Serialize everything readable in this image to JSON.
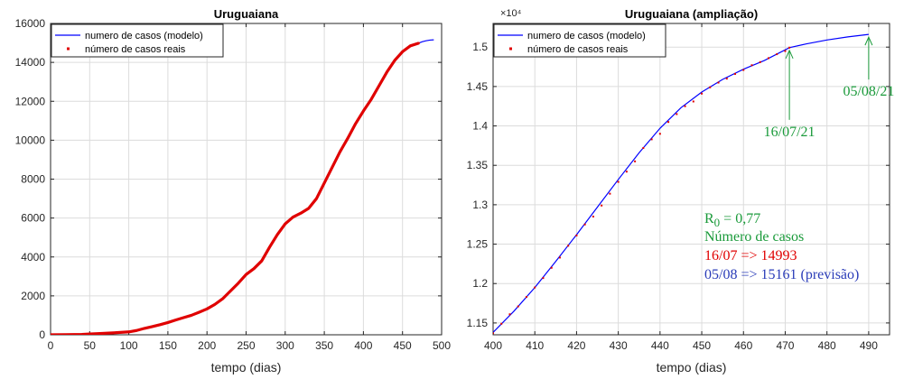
{
  "chart_data": [
    {
      "type": "line",
      "title": "Uruguaiana",
      "xlabel": "tempo (dias)",
      "ylabel": "",
      "xlim": [
        0,
        500
      ],
      "ylim": [
        0,
        16000
      ],
      "xticks": [
        0,
        50,
        100,
        150,
        200,
        250,
        300,
        350,
        400,
        450,
        500
      ],
      "yticks": [
        0,
        2000,
        4000,
        6000,
        8000,
        10000,
        12000,
        14000,
        16000
      ],
      "grid": true,
      "legend_position": "top-left",
      "series": [
        {
          "name": "numero de casos (modelo)",
          "color": "#0000ff",
          "style": "line",
          "x": [
            471,
            475,
            480,
            485,
            490
          ],
          "y": [
            14993,
            15060,
            15110,
            15145,
            15161
          ]
        },
        {
          "name": "número de casos reais",
          "color": "#e00000",
          "style": "markers",
          "x": [
            0,
            20,
            40,
            50,
            60,
            80,
            100,
            110,
            120,
            130,
            140,
            150,
            160,
            170,
            180,
            190,
            200,
            210,
            220,
            230,
            240,
            250,
            260,
            270,
            280,
            290,
            300,
            310,
            320,
            330,
            340,
            350,
            360,
            370,
            380,
            390,
            400,
            410,
            420,
            430,
            440,
            450,
            460,
            471
          ],
          "y": [
            0,
            5,
            20,
            40,
            60,
            100,
            150,
            220,
            330,
            420,
            520,
            630,
            760,
            880,
            1000,
            1160,
            1330,
            1560,
            1850,
            2250,
            2650,
            3100,
            3400,
            3800,
            4500,
            5150,
            5700,
            6050,
            6250,
            6500,
            7000,
            7800,
            8600,
            9400,
            10100,
            10850,
            11500,
            12100,
            12800,
            13500,
            14100,
            14550,
            14850,
            14993
          ]
        }
      ]
    },
    {
      "type": "line",
      "title": "Uruguaiana (ampliação)",
      "xlabel": "tempo (dias)",
      "ylabel": "",
      "y_exponent_label": "×10⁴",
      "xlim": [
        400,
        495
      ],
      "ylim": [
        1.135,
        1.53
      ],
      "xticks": [
        400,
        410,
        420,
        430,
        440,
        450,
        460,
        470,
        480,
        490
      ],
      "yticks": [
        1.15,
        1.2,
        1.25,
        1.3,
        1.35,
        1.4,
        1.45,
        1.5
      ],
      "ytick_labels": [
        "1.15",
        "1.2",
        "1.25",
        "1.3",
        "1.35",
        "1.4",
        "1.45",
        "1.5"
      ],
      "grid": true,
      "legend_position": "top-left",
      "series": [
        {
          "name": "numero de casos (modelo)",
          "color": "#0000ff",
          "style": "line",
          "x": [
            400,
            405,
            410,
            415,
            420,
            425,
            430,
            435,
            440,
            445,
            450,
            455,
            460,
            465,
            471,
            475,
            480,
            485,
            490
          ],
          "y": [
            1.138,
            1.165,
            1.195,
            1.228,
            1.262,
            1.297,
            1.332,
            1.366,
            1.397,
            1.423,
            1.443,
            1.459,
            1.472,
            1.483,
            1.4993,
            1.504,
            1.509,
            1.513,
            1.5161
          ]
        },
        {
          "name": "número de casos reais",
          "color": "#e00000",
          "style": "markers",
          "x": [
            400,
            402,
            404,
            406,
            408,
            410,
            412,
            414,
            416,
            418,
            420,
            422,
            424,
            426,
            428,
            430,
            432,
            434,
            436,
            438,
            440,
            442,
            444,
            446,
            448,
            450,
            452,
            454,
            456,
            458,
            460,
            462,
            464,
            466,
            468,
            470,
            471
          ],
          "y": [
            1.137,
            1.149,
            1.161,
            1.171,
            1.183,
            1.195,
            1.207,
            1.22,
            1.233,
            1.248,
            1.261,
            1.275,
            1.285,
            1.299,
            1.314,
            1.329,
            1.342,
            1.355,
            1.372,
            1.383,
            1.39,
            1.405,
            1.415,
            1.425,
            1.431,
            1.441,
            1.449,
            1.455,
            1.46,
            1.466,
            1.471,
            1.477,
            1.481,
            1.486,
            1.491,
            1.495,
            1.4993
          ]
        }
      ],
      "annotations": [
        {
          "text": "16/07/21",
          "x": 471,
          "y": 1.4993,
          "color": "#1a9a3a"
        },
        {
          "text": "05/08/21",
          "x": 490,
          "y": 1.5161,
          "color": "#1a9a3a"
        }
      ],
      "info_box": {
        "r0_text": "R",
        "r0_sub": "0",
        "r0_value": " = 0,77",
        "label": "Número de casos",
        "line1": "16/07 => 14993",
        "line2": "05/08 => 15161 (previsão)",
        "color_r0": "#1a9a3a",
        "color_label": "#1a9a3a",
        "color_line1": "#e00000",
        "color_line2": "#2a3cb8"
      }
    }
  ]
}
